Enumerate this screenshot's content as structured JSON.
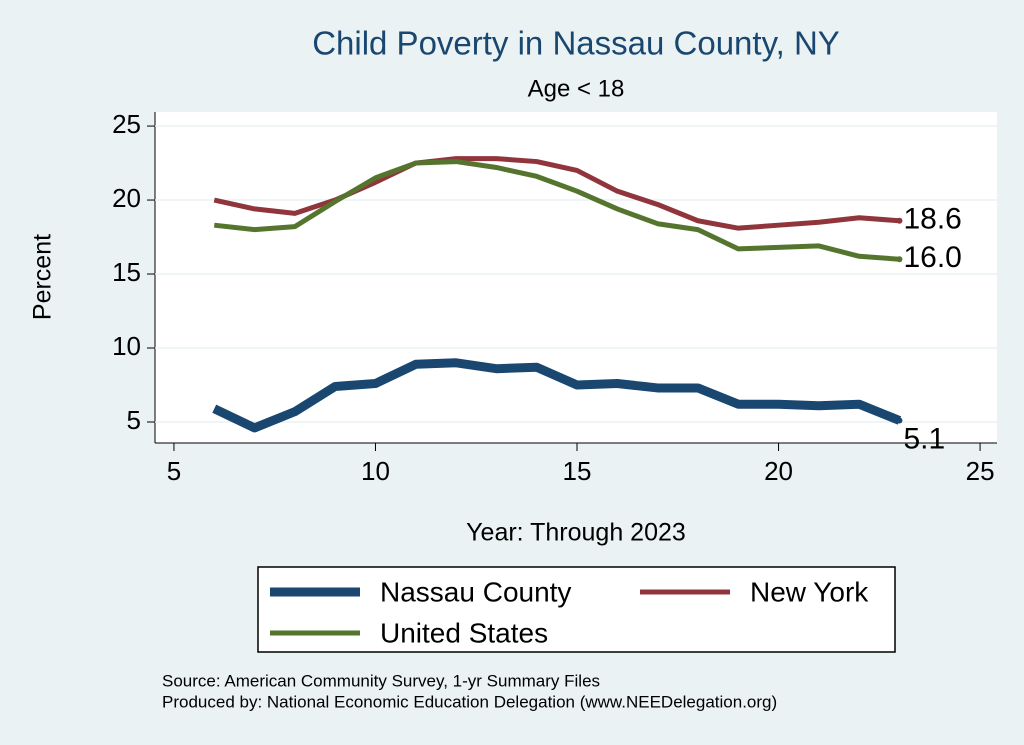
{
  "chart_data": {
    "type": "line",
    "title": "Child Poverty in Nassau County, NY",
    "subtitle": "Age < 18",
    "x_label": "Year: Through 2023",
    "y_label": "Percent",
    "source": "Source: American Community Survey, 1-yr Summary Files",
    "produced_by": "Produced by: National Economic Education Delegation (www.NEEDelegation.org)",
    "x": [
      6,
      7,
      8,
      9,
      10,
      11,
      12,
      13,
      14,
      15,
      16,
      17,
      18,
      19,
      20,
      21,
      22,
      23
    ],
    "series": [
      {
        "name": "Nassau County",
        "color": "#1a476f",
        "line_width": 9,
        "values": [
          5.9,
          4.6,
          5.7,
          7.4,
          7.6,
          8.9,
          9.0,
          8.6,
          8.7,
          7.5,
          7.6,
          7.3,
          7.3,
          6.2,
          6.2,
          6.1,
          6.2,
          5.1
        ],
        "value_labels": [
          null,
          null,
          null,
          null,
          null,
          null,
          null,
          null,
          null,
          null,
          null,
          null,
          null,
          null,
          null,
          null,
          null,
          "5.1"
        ]
      },
      {
        "name": "New York",
        "color": "#90353b",
        "line_width": 5,
        "values": [
          20.0,
          19.4,
          19.1,
          20.0,
          21.2,
          22.5,
          22.8,
          22.8,
          22.6,
          22.0,
          20.6,
          19.7,
          18.6,
          18.1,
          18.3,
          18.5,
          18.8,
          18.6
        ],
        "value_labels": [
          null,
          null,
          null,
          null,
          null,
          null,
          null,
          null,
          null,
          null,
          null,
          null,
          null,
          null,
          null,
          null,
          null,
          "18.6"
        ]
      },
      {
        "name": "United States",
        "color": "#55752f",
        "line_width": 5,
        "values": [
          18.3,
          18.0,
          18.2,
          19.9,
          21.5,
          22.5,
          22.6,
          22.2,
          21.6,
          20.6,
          19.4,
          18.4,
          18.0,
          16.7,
          16.8,
          16.9,
          16.2,
          16.0
        ],
        "value_labels": [
          null,
          null,
          null,
          null,
          null,
          null,
          null,
          null,
          null,
          null,
          null,
          null,
          null,
          null,
          null,
          null,
          null,
          "16.0"
        ]
      }
    ],
    "xlim": [
      4.53,
      25.42
    ],
    "xticks": [
      5,
      10,
      15,
      20,
      25
    ],
    "ylim": [
      3.58,
      25.95
    ],
    "yticks": [
      5,
      10,
      15,
      20,
      25
    ],
    "grid": true
  }
}
